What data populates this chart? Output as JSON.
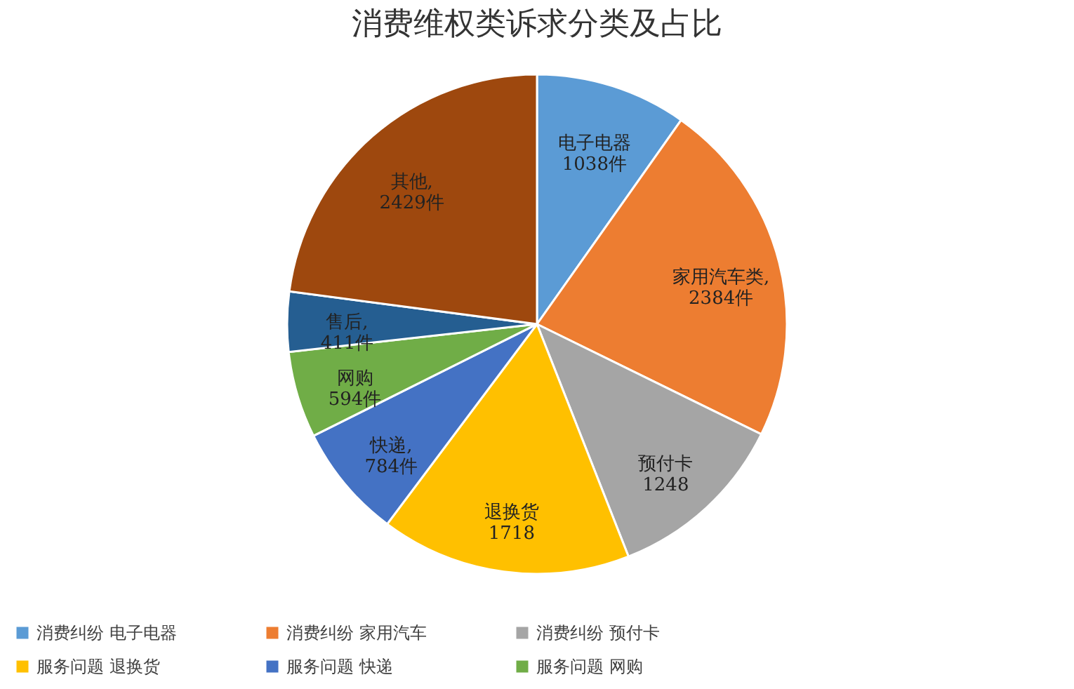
{
  "chart_data": {
    "type": "pie",
    "title": "消费维权类诉求分类及占比",
    "categories": [
      "消费纠纷 电子电器",
      "消费纠纷 家用汽车",
      "消费纠纷 预付卡",
      "服务问题 退换货",
      "服务问题 快递",
      "服务问题 网购",
      null,
      null
    ],
    "values": [
      1038,
      2384,
      1248,
      1718,
      784,
      594,
      411,
      2429
    ],
    "value_labels": [
      "电子电器\n1038件",
      "家用汽车类,\n2384件",
      "预付卡\n1248",
      "退换货\n1718",
      "快递,\n784件",
      "网购\n594件",
      "售后,\n411件",
      "其他,\n2429件"
    ],
    "colors": [
      "#5b9bd5",
      "#ed7d31",
      "#a5a5a5",
      "#ffc000",
      "#4472c4",
      "#70ad47",
      "#255e91",
      "#9e480e"
    ],
    "legend": "bottom"
  }
}
